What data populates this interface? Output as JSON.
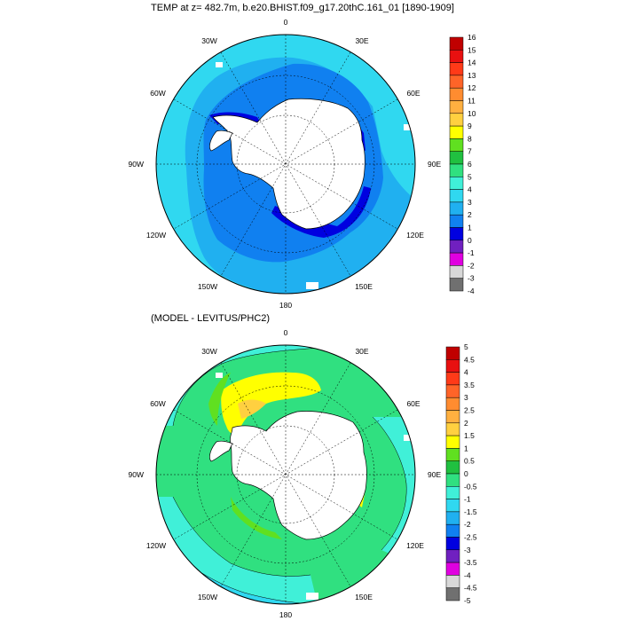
{
  "titles": {
    "top": "TEMP at z= 482.7m, b.e20.BHIST.f09_g17.20thC.161_01 [1890-1909]",
    "bottom": "(MODEL - LEVITUS/PHC2)"
  },
  "longitude_labels": [
    "0",
    "30E",
    "60E",
    "90E",
    "120E",
    "150E",
    "180",
    "150W",
    "120W",
    "90W",
    "60W",
    "30W"
  ],
  "maps": [
    {
      "id": "top",
      "colorbar": {
        "labels": [
          "16",
          "15",
          "14",
          "13",
          "12",
          "11",
          "10",
          "9",
          "8",
          "7",
          "6",
          "5",
          "4",
          "3",
          "2",
          "1",
          "0",
          "-1",
          "-2",
          "-3",
          "-4"
        ],
        "colors": [
          "#c00000",
          "#e81010",
          "#ff3a18",
          "#ff6428",
          "#ff8c30",
          "#ffb040",
          "#ffd040",
          "#ffff00",
          "#60e020",
          "#20c040",
          "#30e080",
          "#40f0d8",
          "#30d8f0",
          "#20b0f0",
          "#1080f0",
          "#0000e0",
          "#7020c0",
          "#e000e0",
          "#d8d8d8",
          "#707070"
        ]
      }
    },
    {
      "id": "bottom",
      "colorbar": {
        "labels": [
          "5",
          "4.5",
          "4",
          "3.5",
          "3",
          "2.5",
          "2",
          "1.5",
          "1",
          "0.5",
          "0",
          "-0.5",
          "-1",
          "-1.5",
          "-2",
          "-2.5",
          "-3",
          "-3.5",
          "-4",
          "-4.5",
          "-5"
        ],
        "colors": [
          "#c00000",
          "#e81010",
          "#ff3a18",
          "#ff6428",
          "#ff8c30",
          "#ffb040",
          "#ffd040",
          "#ffff00",
          "#60e020",
          "#20c040",
          "#30e080",
          "#40f0d8",
          "#30d8f0",
          "#20b0f0",
          "#1080f0",
          "#0000e0",
          "#7020c0",
          "#e000e0",
          "#d8d8d8",
          "#707070"
        ]
      }
    }
  ]
}
